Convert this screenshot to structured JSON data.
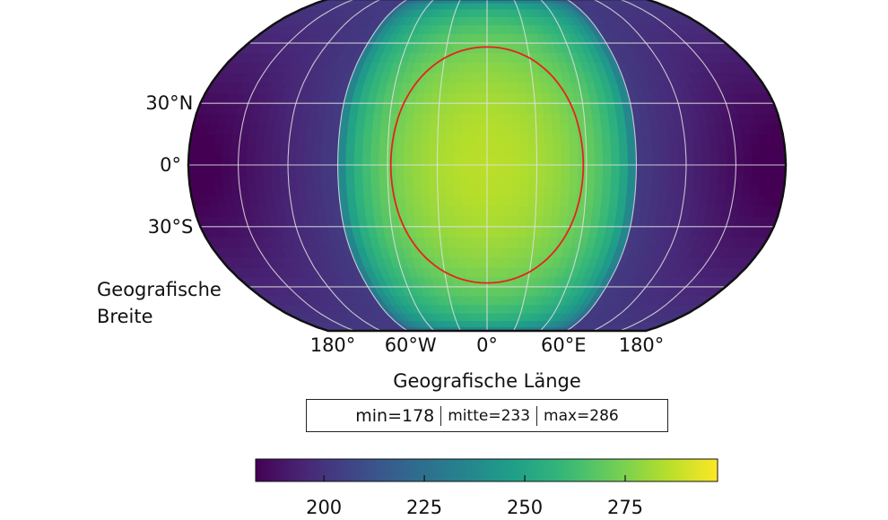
{
  "chart_data": {
    "type": "heatmap",
    "projection": "robinson",
    "xlabel": "Geografische Länge",
    "ylabel": [
      "Geografische",
      "Breite"
    ],
    "x_tick_labels": [
      {
        "lon": -180,
        "label": "180°"
      },
      {
        "lon": -60,
        "label": "60°W"
      },
      {
        "lon": 0,
        "label": "0°"
      },
      {
        "lon": 60,
        "label": "60°E"
      },
      {
        "lon": 180,
        "label": "180°"
      }
    ],
    "y_tick_labels": [
      {
        "lat": 30,
        "label": "30°N"
      },
      {
        "lat": 0,
        "label": "0°"
      },
      {
        "lat": -30,
        "label": "30°S"
      }
    ],
    "meridians": [
      -150,
      -120,
      -90,
      -60,
      -30,
      0,
      30,
      60,
      90,
      120,
      150
    ],
    "parallels": [
      -60,
      -30,
      0,
      30,
      60
    ],
    "grid": true,
    "field": {
      "description_of_pattern": "maximum at substellar point (lon 0, lat 0), decreasing with angular distance",
      "center_lon": 0,
      "center_lat": 0,
      "max": 286,
      "min": 178,
      "red_contour_angular_radius_deg": 58
    },
    "colorbar": {
      "orientation": "horizontal",
      "colormap": "viridis",
      "vmin": 183,
      "vmax": 298,
      "ticks": [
        200,
        225,
        250,
        275
      ]
    },
    "contour_color": "#e8211e",
    "stats": {
      "min_label": "min=178",
      "mid_label": "mitte=233",
      "max_label": "max=286"
    }
  }
}
